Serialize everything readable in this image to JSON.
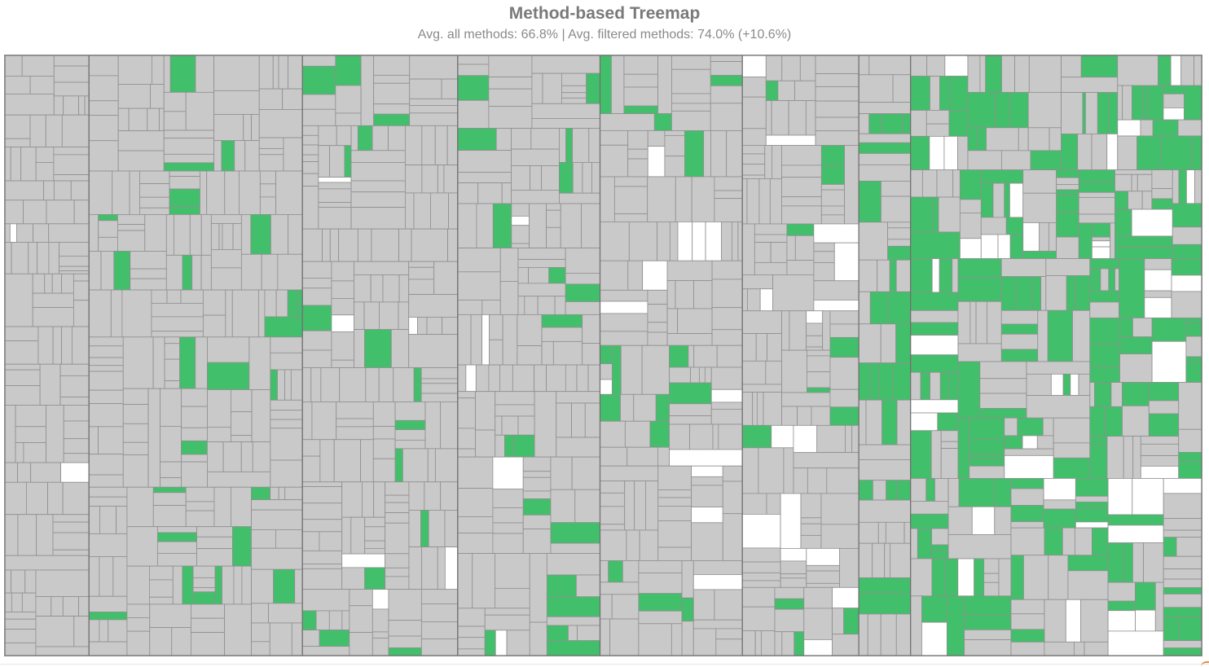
{
  "chart_data": {
    "type": "treemap",
    "title": "Method-based Treemap",
    "subtitle": "Avg. all methods: 66.8% | Avg. filtered methods: 74.0% (+10.6%)",
    "summary": {
      "avg_all_methods_pct": 66.8,
      "avg_filtered_methods_pct": 74.0,
      "relative_change_pct": 10.6
    },
    "legend": "none",
    "colors": {
      "filtered": "#42bf6b",
      "filtered_selected": "#55c67a",
      "unfiltered": "#c9c9c9",
      "other": "#ffffff",
      "border": "#8f8f8f"
    },
    "groups": [
      {
        "weight": 6.5,
        "filtered_share": 0.0,
        "other_share": 0.03
      },
      {
        "weight": 16.5,
        "filtered_share": 0.08,
        "other_share": 0.0
      },
      {
        "weight": 12.0,
        "filtered_share": 0.05,
        "other_share": 0.05
      },
      {
        "weight": 11.0,
        "filtered_share": 0.14,
        "other_share": 0.02
      },
      {
        "weight": 11.0,
        "filtered_share": 0.1,
        "other_share": 0.08
      },
      {
        "weight": 9.0,
        "filtered_share": 0.06,
        "other_share": 0.1
      },
      {
        "weight": 4.0,
        "filtered_share": 0.3,
        "other_share": 0.0
      },
      {
        "weight": 22.5,
        "filtered_share": 0.45,
        "other_share": 0.1
      }
    ]
  }
}
